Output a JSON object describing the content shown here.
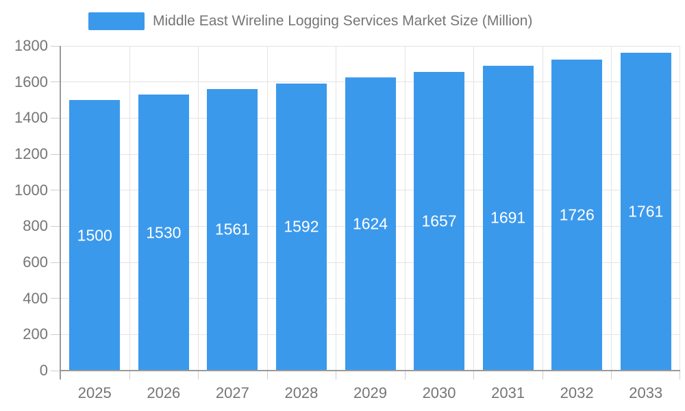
{
  "legend": {
    "label": "Middle East Wireline Logging Services Market Size (Million)"
  },
  "chart_data": {
    "type": "bar",
    "title": "Middle East Wireline Logging Services Market Size (Million)",
    "series_name": "Middle East Wireline Logging Services Market Size (Million)",
    "categories": [
      "2025",
      "2026",
      "2027",
      "2028",
      "2029",
      "2030",
      "2031",
      "2032",
      "2033"
    ],
    "values": [
      1500,
      1530,
      1561,
      1592,
      1624,
      1657,
      1691,
      1726,
      1761
    ],
    "xlabel": "",
    "ylabel": "",
    "ylim": [
      0,
      1800
    ],
    "yticks": [
      0,
      200,
      400,
      600,
      800,
      1000,
      1200,
      1400,
      1600,
      1800
    ],
    "grid": true,
    "legend_position": "top",
    "bar_color": "#3B99EC",
    "value_label_color": "#ffffff",
    "axis_text_color": "#757575",
    "grid_color": "#e3e3e3",
    "axis_line_color": "#999999"
  }
}
